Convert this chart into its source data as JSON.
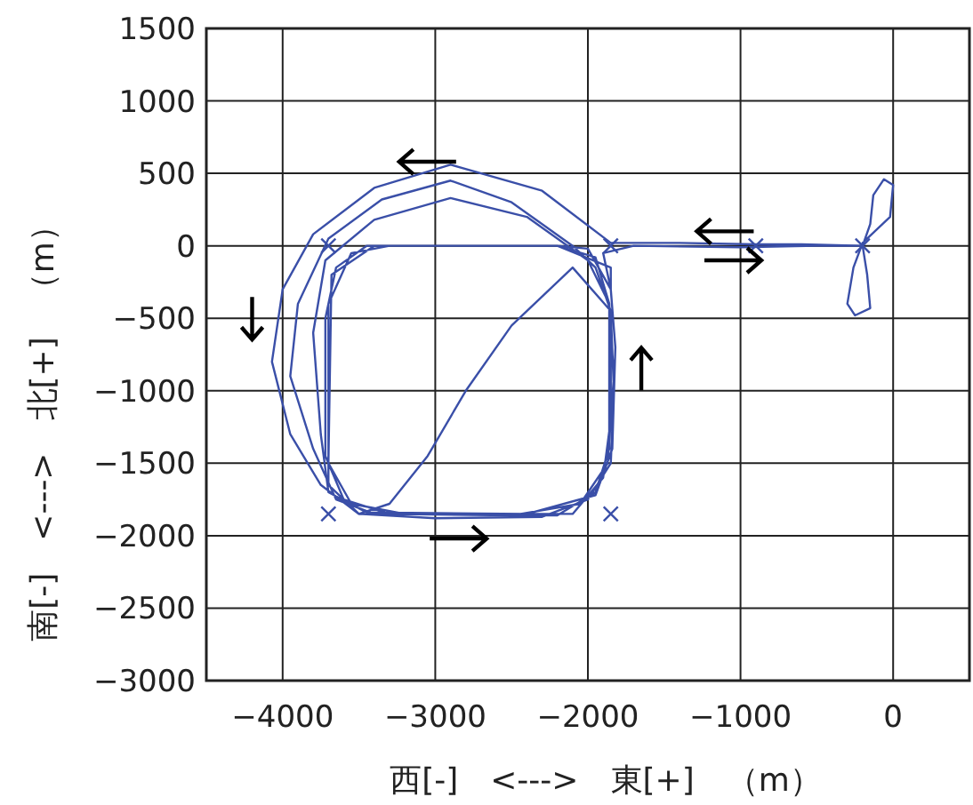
{
  "chart_data": {
    "type": "line",
    "xlabel": "西[-]　<--->　東[+]　（m）",
    "ylabel": "南[-]　<--->　北[+]　（m）",
    "xlim": [
      -4500,
      500
    ],
    "xticks": [
      -4000,
      -3000,
      -2000,
      -1000,
      0
    ],
    "ylim": [
      -3000,
      1500
    ],
    "yticks": [
      -3000,
      -2500,
      -2000,
      -1500,
      -1000,
      -500,
      0,
      500,
      1000,
      1500
    ],
    "grid": true,
    "series": [
      {
        "color": "#3a4fa8",
        "x": [
          -200,
          -150,
          -130,
          -60,
          0,
          -20,
          -200,
          -260,
          -300,
          -250,
          -150,
          -170,
          -200,
          -600,
          -900,
          -1400,
          -1850,
          -2300,
          -2900,
          -3400,
          -3800,
          -4000,
          -4070,
          -3950,
          -3750,
          -3500,
          -3000,
          -2300,
          -2000,
          -1850,
          -1830,
          -1850,
          -1950,
          -2100,
          -2500,
          -2900,
          -3350,
          -3700,
          -3900,
          -3950,
          -3800,
          -3650,
          -3400,
          -2500,
          -2050,
          -1870,
          -1830,
          -1860,
          -2000,
          -2400,
          -2900,
          -3400,
          -3720,
          -3800,
          -3750,
          -3700,
          -3450,
          -2400,
          -1950,
          -1840,
          -1820,
          -1850,
          -2000,
          -2200,
          -3450,
          -3650,
          -3720,
          -3720,
          -3600,
          -3300,
          -2200,
          -1950,
          -1860,
          -1860,
          -1950,
          -2200,
          -3400,
          -3680,
          -3700,
          -3550,
          -3200,
          -2100,
          -1900,
          -1850,
          -1850,
          -2100,
          -2500,
          -2800,
          -3050,
          -3300,
          -3500,
          -3700,
          -3700,
          -3550,
          -3300,
          -2200,
          -1850,
          -1850,
          -1900,
          -1700,
          -1000,
          -500,
          -300
        ],
        "values": [
          0,
          150,
          350,
          460,
          420,
          200,
          20,
          -150,
          -400,
          -480,
          -430,
          -200,
          0,
          10,
          10,
          20,
          20,
          380,
          560,
          400,
          80,
          -300,
          -800,
          -1300,
          -1650,
          -1850,
          -1880,
          -1870,
          -1750,
          -1500,
          -1000,
          -450,
          -150,
          0,
          300,
          450,
          320,
          50,
          -400,
          -900,
          -1400,
          -1750,
          -1850,
          -1860,
          -1780,
          -1500,
          -900,
          -400,
          -100,
          200,
          330,
          180,
          -100,
          -600,
          -1300,
          -1700,
          -1840,
          -1850,
          -1720,
          -1400,
          -700,
          -300,
          -20,
          0,
          0,
          -150,
          -500,
          -1450,
          -1750,
          -1850,
          -1860,
          -1700,
          -1400,
          -400,
          -80,
          0,
          0,
          -200,
          -1500,
          -1780,
          -1850,
          -1850,
          -1600,
          -1200,
          -450,
          -150,
          -550,
          -1000,
          -1450,
          -1780,
          -1850,
          -1650,
          -400,
          -50,
          0,
          0,
          -150,
          -300,
          -50,
          0,
          -10,
          0,
          0
        ]
      },
      {
        "type": "scatter",
        "marker": "cross",
        "color": "#3a4fa8",
        "x": [
          -3700,
          -1850,
          -900,
          -200,
          -3700,
          -1850
        ],
        "values": [
          0,
          0,
          0,
          0,
          -1850,
          -1850
        ]
      }
    ]
  }
}
